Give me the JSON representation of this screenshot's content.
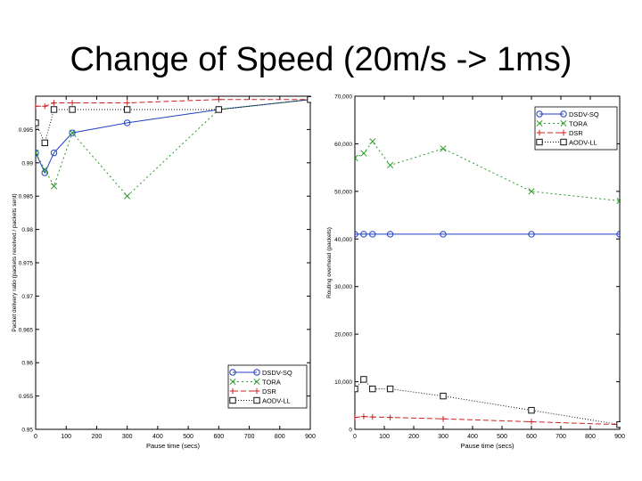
{
  "slide": {
    "title": "Change of Speed (20m/s -> 1ms)"
  },
  "colors": {
    "dsdv": "#1f3fbf",
    "tora": "#2a9a2a",
    "dsr": "#cc2222",
    "aodv": "#111111"
  },
  "chart_data": [
    {
      "type": "line",
      "title": "",
      "xlabel": "Pause time (secs)",
      "ylabel": "Packet delivery ratio (packets received / packets sent)",
      "xlim": [
        0,
        900
      ],
      "ylim": [
        0.95,
        1.0
      ],
      "x_ticks": [
        "0",
        "100",
        "200",
        "300",
        "400",
        "500",
        "600",
        "700",
        "800",
        "900"
      ],
      "y_ticks": [
        "0.95",
        "0.955",
        "0.96",
        "0.965",
        "0.97",
        "0.975",
        "0.98",
        "0.985",
        "0.99",
        "0.995",
        ""
      ],
      "legend_position": "bottom-right",
      "series": [
        {
          "name": "DSDV-SQ",
          "color_key": "dsdv",
          "marker": "o",
          "dash": "",
          "x": [
            0,
            30,
            60,
            120,
            300,
            600,
            900
          ],
          "y": [
            0.9915,
            0.9885,
            0.9915,
            0.9945,
            0.996,
            0.998,
            0.9995
          ]
        },
        {
          "name": "TORA",
          "color_key": "tora",
          "marker": "x",
          "dash": "2,3",
          "x": [
            0,
            30,
            60,
            120,
            300,
            600,
            900
          ],
          "y": [
            0.9915,
            0.989,
            0.9865,
            0.9945,
            0.985,
            0.998,
            0.9995
          ]
        },
        {
          "name": "DSR",
          "color_key": "dsr",
          "marker": "+",
          "dash": "6,3",
          "x": [
            0,
            30,
            60,
            120,
            300,
            600,
            900
          ],
          "y": [
            0.9985,
            0.9985,
            0.999,
            0.999,
            0.999,
            0.9995,
            0.9995
          ]
        },
        {
          "name": "AODV-LL",
          "color_key": "aodv",
          "marker": "sq",
          "dash": "1,2",
          "x": [
            0,
            30,
            60,
            120,
            300,
            600,
            900
          ],
          "y": [
            0.996,
            0.993,
            0.998,
            0.998,
            0.998,
            0.998,
            0.9995
          ]
        }
      ]
    },
    {
      "type": "line",
      "title": "",
      "xlabel": "Pause time (secs)",
      "ylabel": "Routing overhead (packets)",
      "xlim": [
        0,
        900
      ],
      "ylim": [
        0,
        70000
      ],
      "x_ticks": [
        "0",
        "100",
        "200",
        "300",
        "400",
        "500",
        "600",
        "700",
        "800",
        "900"
      ],
      "y_ticks": [
        "0",
        "10,000",
        "20,000",
        "30,000",
        "40,000",
        "50,000",
        "60,000",
        "70,000"
      ],
      "legend_position": "top-right",
      "series": [
        {
          "name": "DSDV-SQ",
          "color_key": "dsdv",
          "marker": "o",
          "dash": "",
          "x": [
            0,
            30,
            60,
            120,
            300,
            600,
            900
          ],
          "y": [
            41000,
            41000,
            41000,
            41000,
            41000,
            41000,
            41000
          ]
        },
        {
          "name": "TORA",
          "color_key": "tora",
          "marker": "x",
          "dash": "2,3",
          "x": [
            0,
            30,
            60,
            120,
            300,
            600,
            900
          ],
          "y": [
            57000,
            58000,
            60500,
            55500,
            59000,
            50000,
            48000
          ]
        },
        {
          "name": "DSR",
          "color_key": "dsr",
          "marker": "+",
          "dash": "6,3",
          "x": [
            0,
            30,
            60,
            120,
            300,
            600,
            900
          ],
          "y": [
            2500,
            2700,
            2600,
            2500,
            2200,
            1600,
            1000
          ]
        },
        {
          "name": "AODV-LL",
          "color_key": "aodv",
          "marker": "sq",
          "dash": "1,2",
          "x": [
            0,
            30,
            60,
            120,
            300,
            600,
            900
          ],
          "y": [
            8500,
            10500,
            8500,
            8500,
            7000,
            4000,
            1000
          ]
        }
      ]
    }
  ]
}
